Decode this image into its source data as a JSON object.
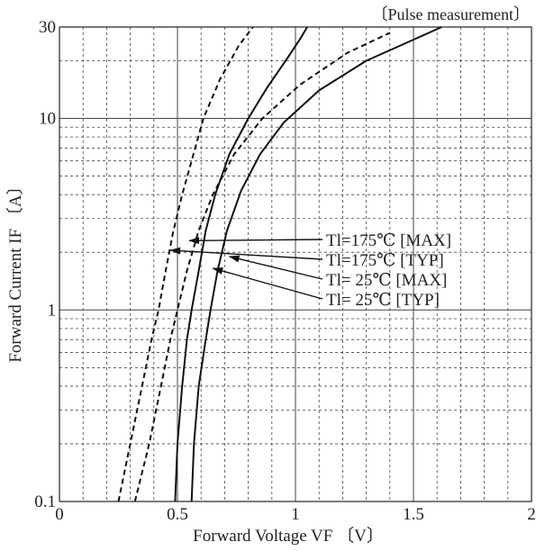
{
  "chart_data": {
    "type": "line",
    "title": "",
    "note": "〔Pulse measurement〕",
    "xlabel": "Forward Voltage   VF 〔V〕",
    "ylabel": "Forward Current   IF 〔A〕",
    "xlim": [
      0,
      2
    ],
    "ylim": [
      0.1,
      30
    ],
    "y_scale": "log",
    "grid": true,
    "x_ticks": [
      {
        "value": 0,
        "label": "0"
      },
      {
        "value": 0.5,
        "label": "0.5"
      },
      {
        "value": 1,
        "label": "1"
      },
      {
        "value": 1.5,
        "label": "1.5"
      },
      {
        "value": 2,
        "label": "2"
      }
    ],
    "y_ticks": [
      {
        "value": 0.1,
        "label": "0.1"
      },
      {
        "value": 1,
        "label": "1"
      },
      {
        "value": 10,
        "label": "10"
      },
      {
        "value": 30,
        "label": "30"
      }
    ],
    "series": [
      {
        "name": "Tl=175℃ [MAX]",
        "style": "dashed",
        "points": [
          [
            0.32,
            0.1
          ],
          [
            0.38,
            0.2
          ],
          [
            0.43,
            0.4
          ],
          [
            0.47,
            0.7
          ],
          [
            0.5,
            1
          ],
          [
            0.54,
            1.6
          ],
          [
            0.59,
            2.6
          ],
          [
            0.65,
            4
          ],
          [
            0.74,
            6.5
          ],
          [
            0.86,
            10
          ],
          [
            1.02,
            15
          ],
          [
            1.22,
            22
          ],
          [
            1.4,
            28
          ]
        ]
      },
      {
        "name": "Tl=175℃ [TYP]",
        "style": "dashed",
        "points": [
          [
            0.25,
            0.1
          ],
          [
            0.3,
            0.2
          ],
          [
            0.35,
            0.4
          ],
          [
            0.39,
            0.7
          ],
          [
            0.42,
            1
          ],
          [
            0.45,
            1.6
          ],
          [
            0.48,
            2.5
          ],
          [
            0.52,
            4
          ],
          [
            0.56,
            6
          ],
          [
            0.61,
            10
          ],
          [
            0.68,
            16
          ],
          [
            0.76,
            24
          ],
          [
            0.82,
            30
          ]
        ]
      },
      {
        "name": "Tl= 25℃ [MAX]",
        "style": "solid",
        "points": [
          [
            0.56,
            0.1
          ],
          [
            0.57,
            0.2
          ],
          [
            0.59,
            0.4
          ],
          [
            0.62,
            0.7
          ],
          [
            0.64,
            1
          ],
          [
            0.67,
            1.6
          ],
          [
            0.71,
            2.6
          ],
          [
            0.77,
            4.2
          ],
          [
            0.85,
            6.5
          ],
          [
            0.95,
            9.5
          ],
          [
            1.1,
            14
          ],
          [
            1.3,
            20
          ],
          [
            1.62,
            30
          ]
        ]
      },
      {
        "name": "Tl= 25℃ [TYP]",
        "style": "solid",
        "points": [
          [
            0.49,
            0.1
          ],
          [
            0.5,
            0.2
          ],
          [
            0.52,
            0.4
          ],
          [
            0.54,
            0.7
          ],
          [
            0.56,
            1
          ],
          [
            0.59,
            1.6
          ],
          [
            0.62,
            2.6
          ],
          [
            0.66,
            4
          ],
          [
            0.72,
            6.5
          ],
          [
            0.8,
            10
          ],
          [
            0.88,
            14.5
          ],
          [
            0.97,
            21
          ],
          [
            1.02,
            26
          ],
          [
            1.05,
            30
          ]
        ]
      }
    ],
    "legend": [
      {
        "label": "Tl=175℃ [MAX]",
        "arrow_to": [
          0.55,
          2.3
        ]
      },
      {
        "label": "Tl=175℃ [TYP]",
        "arrow_to": [
          0.47,
          2.05
        ]
      },
      {
        "label": "Tl= 25℃ [MAX]",
        "arrow_to": [
          0.72,
          1.9
        ]
      },
      {
        "label": "Tl= 25℃ [TYP]",
        "arrow_to": [
          0.65,
          1.65
        ]
      }
    ]
  }
}
